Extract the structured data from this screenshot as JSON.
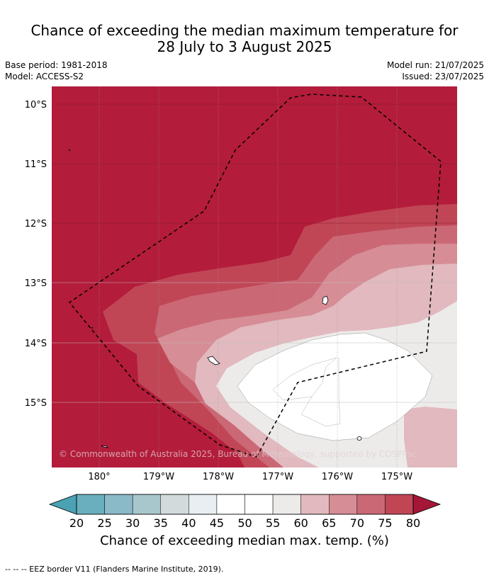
{
  "header": {
    "title_line1": "Chance of exceeding the median maximum temperature for",
    "title_line2": "28 July to 3 August 2025",
    "base_period": "Base period: 1981-2018",
    "model": "Model: ACCESS-S2",
    "model_run": "Model run: 21/07/2025",
    "issued": "Issued: 23/07/2025"
  },
  "map": {
    "lat_labels": [
      "10°S",
      "11°S",
      "12°S",
      "13°S",
      "14°S",
      "15°S"
    ],
    "lon_labels": [
      "180°",
      "179°W",
      "178°W",
      "177°W",
      "176°W",
      "175°W"
    ],
    "copyright": "© Commonwealth of Australia 2025, Bureau of Meteorology, supported by COSPPac",
    "colors": {
      "c80": "#b31c3a",
      "c75": "#c04656",
      "c70": "#cb6875",
      "c65": "#d68d95",
      "c60": "#e1b9be",
      "c55": "#edebea",
      "c50": "#ffffff"
    }
  },
  "colorbar": {
    "ticks": [
      "20",
      "25",
      "30",
      "35",
      "40",
      "45",
      "50",
      "55",
      "60",
      "65",
      "70",
      "75",
      "80"
    ],
    "colors": [
      "#6aafbe",
      "#8ab9c7",
      "#a8c7cd",
      "#d2dadc",
      "#e8eef1",
      "#ffffff",
      "#ffffff",
      "#ecebea",
      "#e1b9be",
      "#d68d95",
      "#cb6875",
      "#c04656"
    ],
    "under_color": "#4aa2b2",
    "over_color": "#a51737",
    "label": "Chance of exceeding median max. temp. (%)"
  },
  "footer": {
    "text": "--  --  -- EEZ border V11 (Flanders Marine Institute, 2019)."
  }
}
